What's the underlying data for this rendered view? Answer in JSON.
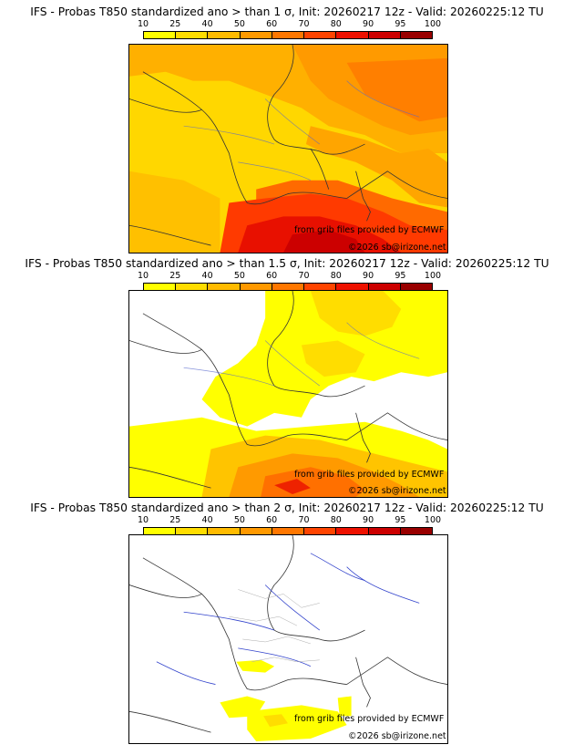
{
  "colorbar": {
    "ticks": [
      "10",
      "25",
      "40",
      "50",
      "60",
      "70",
      "80",
      "90",
      "95",
      "100"
    ],
    "colors": [
      "#ffff00",
      "#ffdd00",
      "#ffbb00",
      "#ff9900",
      "#ff7700",
      "#ff4400",
      "#ee1100",
      "#cc0000",
      "#990000"
    ]
  },
  "panels": [
    {
      "title": "IFS - Probas T850  standardized ano > than 1 σ, Init: 20260217 12z - Valid: 20260225:12 TU",
      "credit_data": "from grib files provided by ECMWF",
      "credit_site": "©2026 sb@irizone.net"
    },
    {
      "title": "IFS - Probas T850  standardized ano > than 1.5 σ, Init: 20260217 12z - Valid: 20260225:12 TU",
      "credit_data": "from grib files provided by ECMWF",
      "credit_site": "©2026 sb@irizone.net"
    },
    {
      "title": "IFS - Probas T850  standardized ano > than 2 σ, Init: 20260217 12z - Valid: 20260225:12 TU",
      "credit_data": "from grib files provided by ECMWF",
      "credit_site": "©2026 sb@irizone.net"
    }
  ]
}
